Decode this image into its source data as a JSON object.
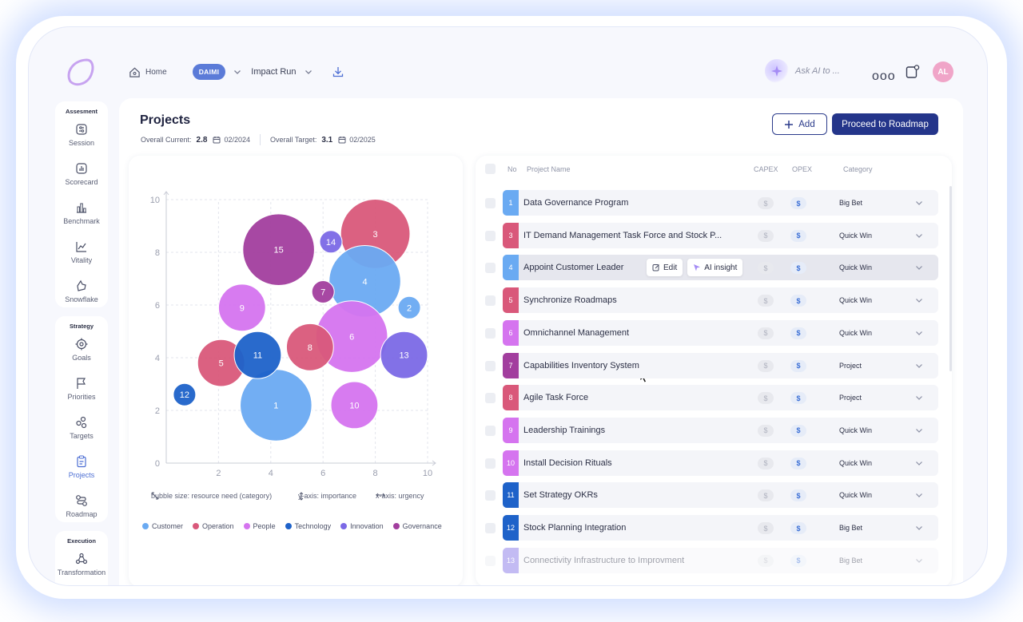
{
  "topbar": {
    "home_label": "Home",
    "workspace_badge": "DAIMI",
    "run_label": "Impact Run",
    "ask_ai_placeholder": "Ask AI to ...",
    "more_label": "ooo",
    "avatar_initials": "AL"
  },
  "sidebar": {
    "groups": [
      {
        "title": "Assesment",
        "items": [
          {
            "label": "Session",
            "icon": "session-icon"
          },
          {
            "label": "Scorecard",
            "icon": "scorecard-icon"
          },
          {
            "label": "Benchmark",
            "icon": "benchmark-icon"
          },
          {
            "label": "Vitality",
            "icon": "vitality-icon"
          },
          {
            "label": "Snowflake",
            "icon": "snowflake-icon"
          }
        ]
      },
      {
        "title": "Strategy",
        "items": [
          {
            "label": "Goals",
            "icon": "goals-icon"
          },
          {
            "label": "Priorities",
            "icon": "flag-icon"
          },
          {
            "label": "Targets",
            "icon": "targets-icon"
          },
          {
            "label": "Projects",
            "icon": "clipboard-icon",
            "active": true
          },
          {
            "label": "Roadmap",
            "icon": "roadmap-icon"
          }
        ]
      },
      {
        "title": "Execution",
        "items": [
          {
            "label": "Transformation",
            "icon": "transformation-icon"
          }
        ]
      }
    ]
  },
  "page": {
    "title": "Projects",
    "current_label": "Overall Current:",
    "current_value": "2.8",
    "current_date": "02/2024",
    "target_label": "Overall Target:",
    "target_value": "3.1",
    "target_date": "02/2025",
    "add_label": "Add",
    "roadmap_label": "Proceed to Roadmap"
  },
  "chart_notes": {
    "size": "bubble size: resource need (category)",
    "y": "y-axis: importance",
    "x": "x-axis: urgency"
  },
  "colors": {
    "Customer": "#6aaaf2",
    "Operation": "#d9587a",
    "People": "#d574ef",
    "Technology": "#1e62c9",
    "Innovation": "#7b69e6",
    "Governance": "#a23e9e"
  },
  "chart_data": {
    "type": "bubble",
    "title": "",
    "xlabel": "",
    "ylabel": "",
    "xlim": [
      0,
      10
    ],
    "ylim": [
      0,
      10
    ],
    "xticks": [
      0,
      2,
      4,
      6,
      8,
      10
    ],
    "yticks": [
      0,
      2,
      4,
      6,
      8,
      10
    ],
    "grid": true,
    "legend": [
      "Customer",
      "Operation",
      "People",
      "Technology",
      "Innovation",
      "Governance"
    ],
    "legend_placement": "bottom",
    "points": [
      {
        "id": "1",
        "x": 4.2,
        "y": 2.2,
        "r": 3.2,
        "category": "Customer"
      },
      {
        "id": "2",
        "x": 9.3,
        "y": 5.9,
        "r": 1.0,
        "category": "Customer"
      },
      {
        "id": "3",
        "x": 8.0,
        "y": 8.7,
        "r": 3.1,
        "category": "Operation"
      },
      {
        "id": "4",
        "x": 7.6,
        "y": 6.9,
        "r": 3.2,
        "category": "Customer"
      },
      {
        "id": "5",
        "x": 2.1,
        "y": 3.8,
        "r": 2.1,
        "category": "Operation"
      },
      {
        "id": "6",
        "x": 7.1,
        "y": 4.8,
        "r": 3.2,
        "category": "People"
      },
      {
        "id": "7",
        "x": 6.0,
        "y": 6.5,
        "r": 1.0,
        "category": "Governance"
      },
      {
        "id": "8",
        "x": 5.5,
        "y": 4.4,
        "r": 2.1,
        "category": "Operation"
      },
      {
        "id": "9",
        "x": 2.9,
        "y": 5.9,
        "r": 2.1,
        "category": "People"
      },
      {
        "id": "10",
        "x": 7.2,
        "y": 2.2,
        "r": 2.1,
        "category": "People"
      },
      {
        "id": "11",
        "x": 3.5,
        "y": 4.1,
        "r": 2.1,
        "category": "Technology"
      },
      {
        "id": "12",
        "x": 0.7,
        "y": 2.6,
        "r": 1.0,
        "category": "Technology"
      },
      {
        "id": "13",
        "x": 9.1,
        "y": 4.1,
        "r": 2.1,
        "category": "Innovation"
      },
      {
        "id": "14",
        "x": 6.3,
        "y": 8.4,
        "r": 1.0,
        "category": "Innovation"
      },
      {
        "id": "15",
        "x": 4.3,
        "y": 8.1,
        "r": 3.2,
        "category": "Governance"
      }
    ]
  },
  "table": {
    "headers": {
      "no": "No",
      "name": "Project Name",
      "capex": "CAPEX",
      "opex": "OPEX",
      "category": "Category"
    },
    "row_actions": {
      "edit": "Edit",
      "ai": "AI insight"
    },
    "rows": [
      {
        "no": "1",
        "name": "Data Governance Program",
        "color": "#6aaaf2",
        "capex": "$",
        "opex": "$",
        "category": "Big Bet"
      },
      {
        "no": "3",
        "name": "IT Demand Management Task Force and Stock P...",
        "color": "#d9587a",
        "capex": "$",
        "opex": "$",
        "category": "Quick Win"
      },
      {
        "no": "4",
        "name": "Appoint Customer Leader",
        "color": "#6aaaf2",
        "capex": "$",
        "opex": "$",
        "category": "Quick Win",
        "highlight": true
      },
      {
        "no": "5",
        "name": "Synchronize Roadmaps",
        "color": "#d9587a",
        "capex": "$",
        "opex": "$",
        "category": "Quick Win"
      },
      {
        "no": "6",
        "name": "Omnichannel Management",
        "color": "#d574ef",
        "capex": "$",
        "opex": "$",
        "category": "Quick Win"
      },
      {
        "no": "7",
        "name": "Capabilities Inventory System",
        "color": "#a23e9e",
        "capex": "$",
        "opex": "$",
        "category": "Project"
      },
      {
        "no": "8",
        "name": "Agile Task Force",
        "color": "#d9587a",
        "capex": "$",
        "opex": "$",
        "category": "Project"
      },
      {
        "no": "9",
        "name": "Leadership Trainings",
        "color": "#d574ef",
        "capex": "$",
        "opex": "$",
        "category": "Quick Win"
      },
      {
        "no": "10",
        "name": "Install Decision Rituals",
        "color": "#d574ef",
        "capex": "$",
        "opex": "$",
        "category": "Quick Win"
      },
      {
        "no": "11",
        "name": "Set Strategy OKRs",
        "color": "#1e62c9",
        "capex": "$",
        "opex": "$",
        "category": "Quick Win"
      },
      {
        "no": "12",
        "name": "Stock Planning Integration",
        "color": "#1e62c9",
        "capex": "$",
        "opex": "$",
        "category": "Big Bet"
      },
      {
        "no": "13",
        "name": "Connectivity Infrastructure to Improvment",
        "color": "#7b69e6",
        "capex": "$",
        "opex": "$",
        "category": "Big Bet",
        "faded": true
      }
    ]
  }
}
